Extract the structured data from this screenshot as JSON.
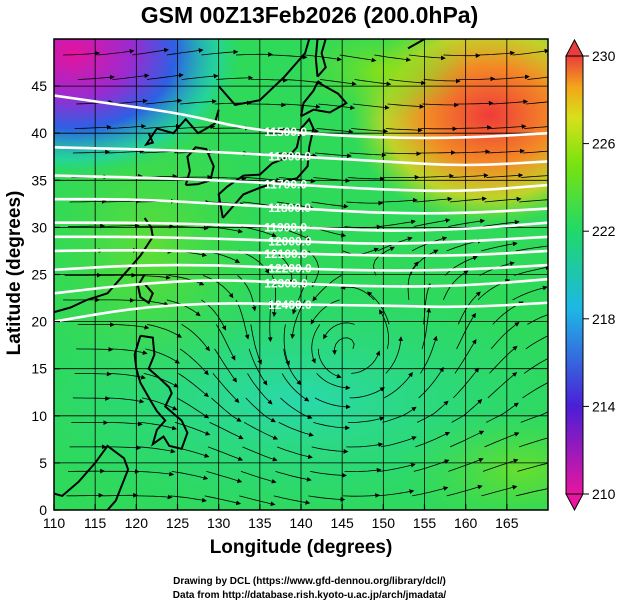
{
  "title": "GSM 00Z13Feb2026 (200.0hPa)",
  "xlabel": "Longitude (degrees)",
  "ylabel": "Latitude  (degrees)",
  "credit_line1": "Drawing by DCL (https://www.gfd-dennou.org/library/dcl/)",
  "credit_line2": "Data from http://database.rish.kyoto-u.ac.jp/arch/jmadata/",
  "chart_data": {
    "type": "heatmap",
    "xlim": [
      110,
      170
    ],
    "ylim": [
      0,
      50
    ],
    "x_ticks": [
      "110",
      "115",
      "120",
      "125",
      "130",
      "135",
      "140",
      "145",
      "150",
      "155",
      "160",
      "165"
    ],
    "y_ticks": [
      "0",
      "5",
      "10",
      "15",
      "20",
      "25",
      "30",
      "35",
      "40",
      "45"
    ],
    "grid": true,
    "colorbar": {
      "ticks": [
        "210",
        "214",
        "218",
        "222",
        "226",
        "230"
      ],
      "range": [
        210,
        230
      ],
      "colors": [
        "#e8159e",
        "#4b1fd6",
        "#1eb6e6",
        "#1fd96a",
        "#77e30f",
        "#d8e01b",
        "#f3a51a",
        "#ea3d3d"
      ]
    },
    "contours": [
      {
        "label": "11500.0",
        "points": [
          [
            110,
            44
          ],
          [
            118,
            43
          ],
          [
            126,
            42
          ],
          [
            133,
            40.5
          ],
          [
            140,
            40
          ],
          [
            150,
            39.5
          ],
          [
            160,
            39.5
          ],
          [
            170,
            40
          ]
        ]
      },
      {
        "label": "11600.0",
        "points": [
          [
            110,
            38.5
          ],
          [
            120,
            38.3
          ],
          [
            130,
            38
          ],
          [
            140,
            37.5
          ],
          [
            150,
            37
          ],
          [
            160,
            36.5
          ],
          [
            170,
            37
          ]
        ]
      },
      {
        "label": "11700.0",
        "points": [
          [
            110,
            35.5
          ],
          [
            120,
            35.3
          ],
          [
            130,
            35
          ],
          [
            140,
            34.5
          ],
          [
            150,
            34
          ],
          [
            160,
            33.8
          ],
          [
            170,
            34.5
          ]
        ]
      },
      {
        "label": "11800.0",
        "points": [
          [
            110,
            33
          ],
          [
            120,
            33
          ],
          [
            130,
            32.5
          ],
          [
            140,
            32
          ],
          [
            150,
            31.5
          ],
          [
            160,
            31.5
          ],
          [
            170,
            32
          ]
        ]
      },
      {
        "label": "11900.0",
        "points": [
          [
            110,
            30.5
          ],
          [
            120,
            30.5
          ],
          [
            130,
            30.3
          ],
          [
            140,
            30
          ],
          [
            150,
            29.6
          ],
          [
            160,
            29.8
          ],
          [
            170,
            30.5
          ]
        ]
      },
      {
        "label": "12000.0",
        "points": [
          [
            110,
            29
          ],
          [
            120,
            29
          ],
          [
            130,
            28.8
          ],
          [
            140,
            28.5
          ],
          [
            150,
            28.2
          ],
          [
            160,
            28.5
          ],
          [
            170,
            29
          ]
        ]
      },
      {
        "label": "12100.0",
        "points": [
          [
            110,
            27.5
          ],
          [
            120,
            27.6
          ],
          [
            130,
            27.4
          ],
          [
            140,
            27.2
          ],
          [
            150,
            27
          ],
          [
            160,
            27
          ],
          [
            170,
            27.5
          ]
        ]
      },
      {
        "label": "12200.0",
        "points": [
          [
            110,
            25.5
          ],
          [
            120,
            26
          ],
          [
            130,
            26
          ],
          [
            140,
            25.6
          ],
          [
            150,
            25.4
          ],
          [
            160,
            25.5
          ],
          [
            170,
            26
          ]
        ]
      },
      {
        "label": "12300.0",
        "points": [
          [
            110,
            23
          ],
          [
            120,
            24
          ],
          [
            130,
            24.5
          ],
          [
            140,
            24
          ],
          [
            150,
            23.7
          ],
          [
            160,
            23.8
          ],
          [
            170,
            24.5
          ]
        ]
      },
      {
        "label": "12400.0",
        "points": [
          [
            110,
            20
          ],
          [
            120,
            21.5
          ],
          [
            130,
            22
          ],
          [
            140,
            21.8
          ],
          [
            150,
            21.7
          ],
          [
            160,
            21.5
          ],
          [
            170,
            22
          ]
        ]
      }
    ]
  }
}
